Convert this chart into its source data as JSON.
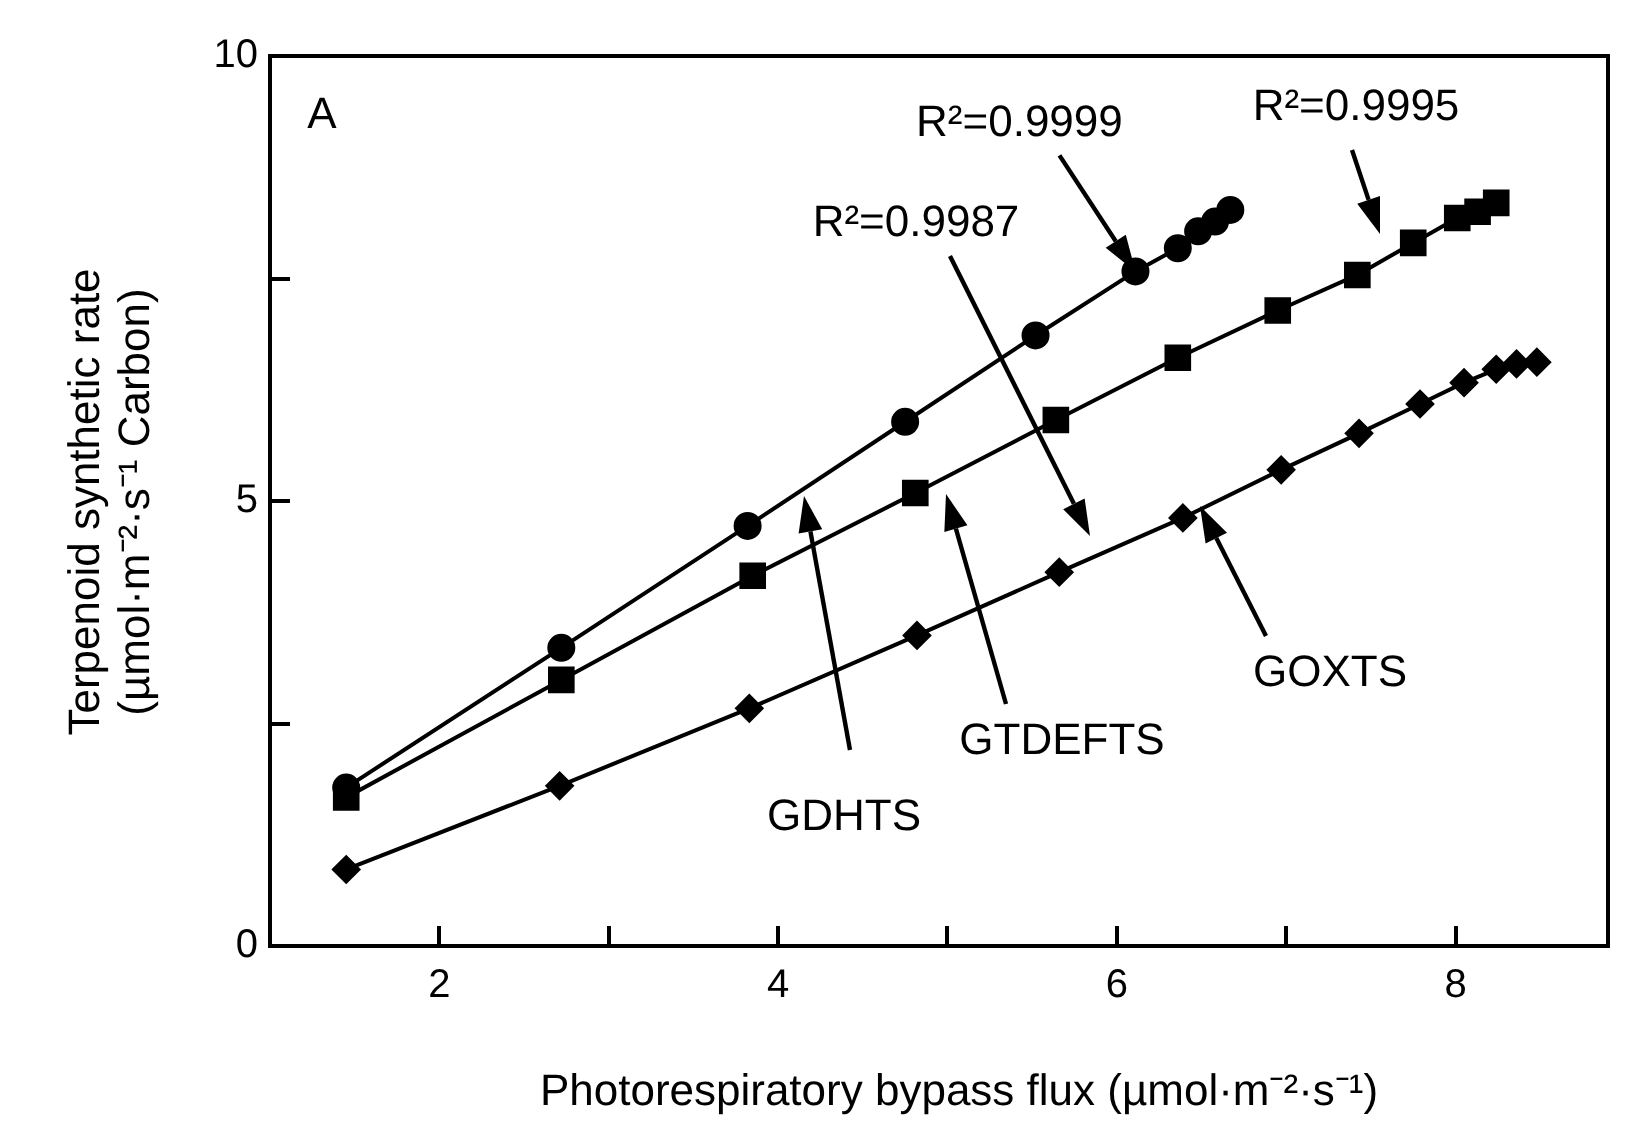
{
  "chart_data": {
    "type": "line",
    "xlabel": "Photorespiratory bypass flux (µmol·m⁻²·s⁻¹)",
    "ylabel": "Terpenoid synthetic rate\n(µmol·m⁻²·s⁻¹ Carbon)",
    "xlim": [
      1,
      8.9
    ],
    "xticks": [
      2,
      {
        "value": 3,
        "label": null
      },
      4,
      {
        "value": 5,
        "label": null
      },
      6,
      {
        "value": 7,
        "label": null
      },
      8
    ],
    "ylim": [
      0,
      10
    ],
    "yticks": [
      0,
      {
        "value": 2.5,
        "label": null
      },
      5,
      {
        "value": 7.5,
        "label": null
      },
      10
    ],
    "grid": false,
    "legend": false,
    "line_style": "solid",
    "series": [
      {
        "color": "#000000",
        "marker": "circle",
        "x": [
          1.45,
          2.72,
          3.82,
          4.75,
          5.52,
          6.11,
          6.36,
          6.48,
          6.58,
          6.67
        ],
        "values": [
          1.78,
          3.35,
          4.72,
          5.89,
          6.86,
          7.58,
          7.84,
          8.03,
          8.14,
          8.27
        ]
      },
      {
        "color": "#000000",
        "marker": "square",
        "x": [
          1.45,
          2.72,
          3.85,
          4.81,
          5.64,
          6.36,
          6.95,
          7.42,
          7.75,
          8.01,
          8.13,
          8.24
        ],
        "values": [
          1.67,
          2.99,
          4.16,
          5.09,
          5.91,
          6.61,
          7.14,
          7.54,
          7.9,
          8.18,
          8.25,
          8.35
        ]
      },
      {
        "color": "#000000",
        "marker": "diamond",
        "x": [
          1.45,
          2.71,
          3.83,
          4.82,
          5.66,
          6.39,
          6.97,
          7.43,
          7.79,
          8.05,
          8.24,
          8.36,
          8.48
        ],
        "values": [
          0.86,
          1.8,
          2.67,
          3.49,
          4.2,
          4.81,
          5.35,
          5.76,
          6.09,
          6.33,
          6.48,
          6.54,
          6.56
        ]
      }
    ],
    "annotations": [
      "A",
      {
        "text": "R²=0.9999",
        "x": 6.11,
        "y": 7.58
      },
      "R²=0.9995",
      "R²=0.9987",
      "GDHTS",
      "GTDEFTS",
      "GOXTS"
    ]
  }
}
